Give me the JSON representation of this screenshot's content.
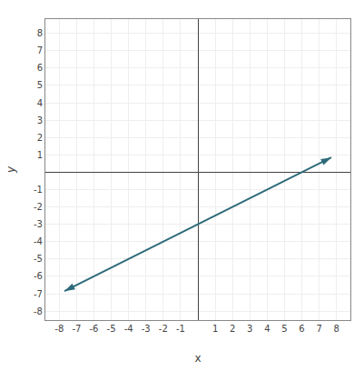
{
  "chart_data": {
    "type": "line",
    "x": [
      -7.7,
      7.7
    ],
    "values": [
      -6.85,
      0.85
    ],
    "color": "#2e6b7a",
    "marker": "arrow",
    "xlabel": "x",
    "ylabel": "y",
    "xlim": [
      -8.8,
      8.8
    ],
    "ylim": [
      -8.5,
      8.8
    ],
    "xticks": [
      -8,
      -7,
      -6,
      -5,
      -4,
      -3,
      -2,
      -1,
      1,
      2,
      3,
      4,
      5,
      6,
      7,
      8
    ],
    "yticks": [
      -8,
      -7,
      -6,
      -5,
      -4,
      -3,
      -2,
      -1,
      1,
      2,
      3,
      4,
      5,
      6,
      7,
      8
    ],
    "grid": true
  }
}
